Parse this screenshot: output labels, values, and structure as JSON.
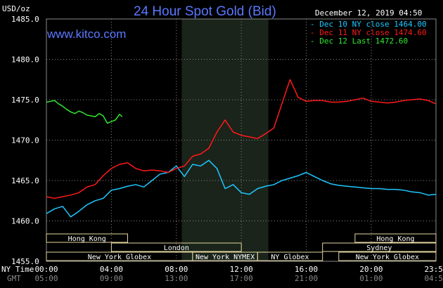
{
  "header": {
    "units": "USD/oz",
    "title": "24 Hour Spot Gold (Bid)",
    "timestamp": "December 12, 2019 04:50",
    "brand": "www.kitco.com"
  },
  "axis_rows": {
    "ny_time_label": "NY Time",
    "gmt_label": "GMT"
  },
  "colors": {
    "background": "#000000",
    "plot_background": "#000000",
    "grid": "#8a8a8a",
    "dec10": "#1ec8ff",
    "dec11": "#ff1a1a",
    "dec12": "#2ee82e",
    "title": "#5a78ff",
    "session_box": "#e6d7a0"
  },
  "chart_data": {
    "type": "line",
    "title": "24 Hour Spot Gold (Bid)",
    "ylabel": "USD/oz",
    "ylim": [
      1455.0,
      1485.0
    ],
    "xlim_minutes": [
      0,
      1439
    ],
    "y_ticks": [
      "1485.0",
      "1480.0",
      "1475.0",
      "1470.0",
      "1465.0",
      "1460.0",
      "1455.0"
    ],
    "x_ticks_ny": [
      "00:00",
      "04:00",
      "08:00",
      "12:00",
      "16:00",
      "20:00",
      "23:59"
    ],
    "x_ticks_gmt": [
      "05:00",
      "09:00",
      "13:00",
      "17:00",
      "21:00",
      "01:00",
      "04:59"
    ],
    "grid": true,
    "legend_position": "top-right",
    "legend": [
      "Dec 10 NY close 1464.00",
      "Dec 11 NY close 1474.60",
      "Dec 12 Last 1472.60"
    ],
    "sessions": [
      {
        "label": "Hong Kong",
        "start": "00:00",
        "end": "05:00",
        "row": 1
      },
      {
        "label": "London",
        "start": "04:00",
        "end": "12:00",
        "row": 2
      },
      {
        "label": "New York Globex",
        "start": "00:00",
        "end": "09:00",
        "row": 3
      },
      {
        "label": "New York NYMEX",
        "start": "09:00",
        "end": "13:00",
        "row": 3
      },
      {
        "label": "NY Globex",
        "start": "13:00",
        "end": "17:00",
        "row": 3
      },
      {
        "label": "Hong Kong",
        "start": "19:00",
        "end": "23:59",
        "row": 1
      },
      {
        "label": "Sydney",
        "start": "17:00",
        "end": "23:59",
        "row": 2
      },
      {
        "label": "New York Globex",
        "start": "18:00",
        "end": "23:59",
        "row": 3
      }
    ],
    "highlight_band": {
      "start": "08:20",
      "end": "13:40"
    },
    "series": [
      {
        "name": "Dec 10 NY close 1464.00",
        "color": "#1ec8ff",
        "x": [
          0,
          30,
          60,
          90,
          120,
          150,
          180,
          210,
          240,
          270,
          300,
          330,
          360,
          390,
          420,
          450,
          480,
          510,
          540,
          570,
          600,
          630,
          660,
          690,
          720,
          750,
          780,
          810,
          840,
          870,
          900,
          930,
          960,
          990,
          1020,
          1050,
          1080,
          1110,
          1140,
          1170,
          1200,
          1230,
          1260,
          1290,
          1320,
          1350,
          1380,
          1410,
          1439
        ],
        "y": [
          1460.9,
          1461.5,
          1461.8,
          1460.5,
          1461.2,
          1462.0,
          1462.5,
          1462.8,
          1463.8,
          1464.0,
          1464.3,
          1464.5,
          1464.2,
          1465.0,
          1465.8,
          1466.0,
          1466.8,
          1465.5,
          1467.0,
          1466.8,
          1467.5,
          1466.5,
          1464.0,
          1464.5,
          1463.5,
          1463.3,
          1464.0,
          1464.3,
          1464.5,
          1465.0,
          1465.3,
          1465.6,
          1466.0,
          1465.5,
          1465.0,
          1464.6,
          1464.4,
          1464.3,
          1464.2,
          1464.1,
          1464.0,
          1464.0,
          1463.9,
          1463.9,
          1463.8,
          1463.6,
          1463.5,
          1463.2,
          1463.3
        ]
      },
      {
        "name": "Dec 11 NY close 1474.60",
        "color": "#ff1a1a",
        "x": [
          0,
          30,
          60,
          90,
          120,
          150,
          180,
          210,
          240,
          270,
          300,
          330,
          360,
          390,
          420,
          450,
          480,
          510,
          540,
          570,
          600,
          630,
          660,
          690,
          720,
          750,
          780,
          810,
          840,
          870,
          900,
          930,
          960,
          990,
          1020,
          1050,
          1080,
          1110,
          1140,
          1170,
          1200,
          1230,
          1260,
          1290,
          1320,
          1350,
          1380,
          1410,
          1439
        ],
        "y": [
          1463.0,
          1462.8,
          1463.0,
          1463.2,
          1463.5,
          1464.2,
          1464.5,
          1465.6,
          1466.5,
          1467.0,
          1467.2,
          1466.5,
          1466.2,
          1466.3,
          1466.2,
          1466.0,
          1466.5,
          1466.8,
          1468.0,
          1468.3,
          1469.0,
          1471.0,
          1472.5,
          1471.0,
          1470.6,
          1470.4,
          1470.2,
          1470.8,
          1471.5,
          1474.5,
          1477.5,
          1475.3,
          1474.8,
          1474.9,
          1474.9,
          1474.7,
          1474.7,
          1474.8,
          1475.0,
          1475.2,
          1474.8,
          1474.7,
          1474.6,
          1474.7,
          1474.9,
          1475.0,
          1475.1,
          1474.9,
          1474.5
        ]
      },
      {
        "name": "Dec 12 Last 1472.60",
        "color": "#2ee82e",
        "x": [
          0,
          15,
          30,
          45,
          60,
          75,
          90,
          105,
          120,
          135,
          150,
          165,
          180,
          195,
          210,
          225,
          240,
          255,
          270,
          280
        ],
        "y": [
          1474.7,
          1474.8,
          1474.9,
          1474.5,
          1474.2,
          1473.8,
          1473.5,
          1473.3,
          1473.6,
          1473.4,
          1473.1,
          1473.0,
          1472.9,
          1473.3,
          1473.0,
          1472.1,
          1472.3,
          1472.5,
          1473.2,
          1472.9
        ]
      }
    ]
  }
}
